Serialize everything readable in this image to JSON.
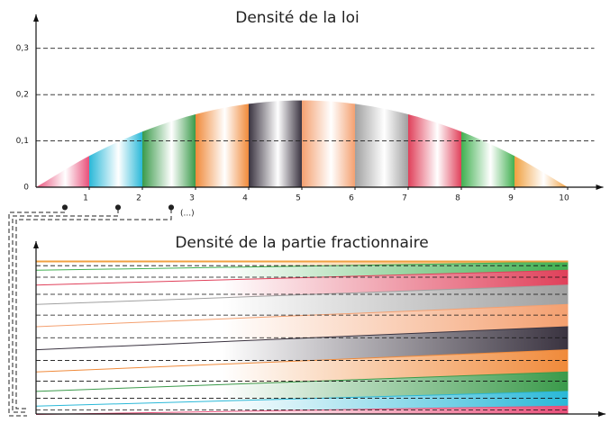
{
  "chart_data": [
    {
      "type": "area",
      "title": "Densité de la loi",
      "x": [
        0,
        1,
        2,
        3,
        4,
        5,
        6,
        7,
        8,
        9,
        10
      ],
      "values": [
        0,
        0.0675,
        0.12,
        0.1575,
        0.18,
        0.1875,
        0.18,
        0.1575,
        0.12,
        0.0675,
        0
      ],
      "segment_colors": [
        "#e8507a",
        "#2ab8d8",
        "#3a9a4a",
        "#f08a3a",
        "#3a3340",
        "#f4a070",
        "#a0a0a0",
        "#e0405a",
        "#40b050",
        "#f0a040"
      ],
      "xlim": [
        0,
        10.5
      ],
      "ylim": [
        0,
        0.35
      ],
      "xticks": [
        1,
        2,
        3,
        4,
        5,
        6,
        7,
        8,
        9,
        10
      ],
      "yticks": [
        0,
        {
          "value": 0.1,
          "label": "0,1"
        },
        {
          "value": 0.2,
          "label": "0,2"
        },
        {
          "value": 0.3,
          "label": "0,3"
        }
      ],
      "grid": true,
      "annotation": "(...)"
    },
    {
      "type": "stacked_area",
      "title": "Densité de la partie fractionnaire",
      "x": [
        0,
        1
      ],
      "xlim": [
        0,
        1.05
      ],
      "ylim": [
        0,
        1.3
      ],
      "series": [
        {
          "color": "#e8507a",
          "values": [
            0,
            0.0675
          ]
        },
        {
          "color": "#2ab8d8",
          "values": [
            0.0675,
            0.12
          ]
        },
        {
          "color": "#3a9a4a",
          "values": [
            0.12,
            0.1575
          ]
        },
        {
          "color": "#f08a3a",
          "values": [
            0.1575,
            0.18
          ]
        },
        {
          "color": "#3a3340",
          "values": [
            0.18,
            0.1875
          ]
        },
        {
          "color": "#f4a070",
          "values": [
            0.1875,
            0.18
          ]
        },
        {
          "color": "#a0a0a0",
          "values": [
            0.18,
            0.1575
          ]
        },
        {
          "color": "#e0405a",
          "values": [
            0.1575,
            0.12
          ]
        },
        {
          "color": "#40b050",
          "values": [
            0.12,
            0.0675
          ]
        },
        {
          "color": "#f0a040",
          "values": [
            0.0675,
            0
          ]
        }
      ]
    }
  ]
}
